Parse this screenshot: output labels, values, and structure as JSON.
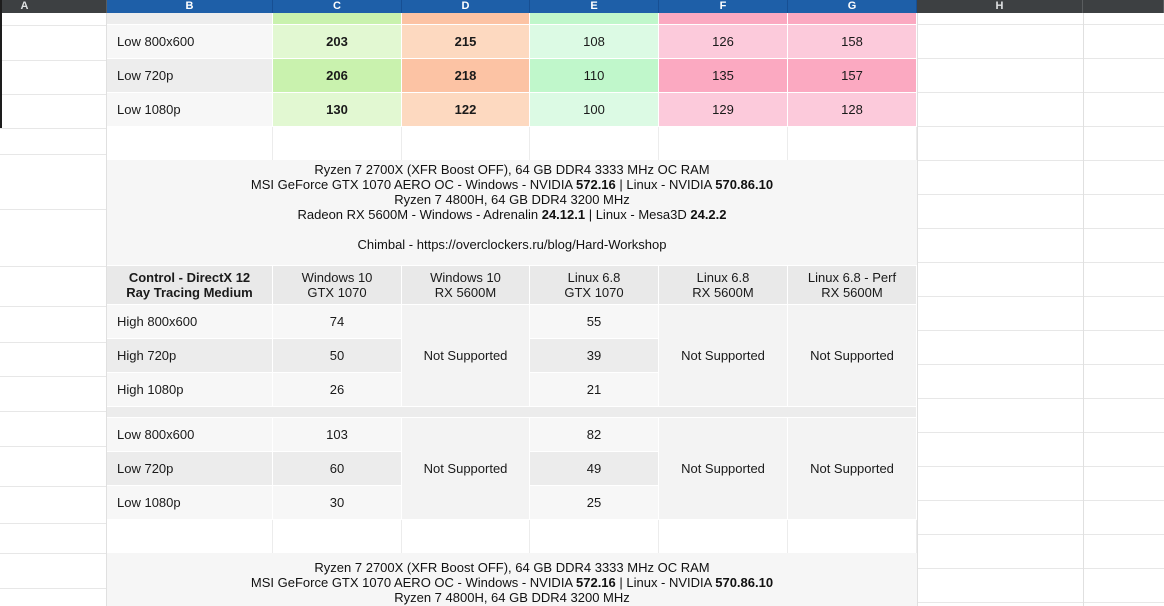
{
  "column_headers": {
    "labels": [
      "A",
      "B",
      "C",
      "D",
      "E",
      "F",
      "G",
      "H"
    ],
    "selected_columns": "B-G"
  },
  "colors": {
    "header_selected_bg": "#1e5fa8",
    "header_bg": "#3d4042",
    "header_text": "#ffffff",
    "green_light": "#e2f8d2",
    "green_dark": "#c9f2ae",
    "orange_light": "#fdd9c0",
    "orange_dark": "#fcc3a4",
    "mint_light": "#dcfae4",
    "mint_dark": "#c0f7cb",
    "pink_light": "#fccadb",
    "pink_dark": "#fba9c1",
    "row_light": "#f7f7f7",
    "row_dark": "#ededed",
    "spec_block_bg": "#f6f6f6",
    "table_header_bg": "#e9e9e9",
    "merged_cell_bg": "#f3f3f3"
  },
  "top_table": {
    "rows": [
      {
        "label": "Low 800x600",
        "values": [
          "203",
          "215",
          "108",
          "126",
          "158"
        ]
      },
      {
        "label": "Low 720p",
        "values": [
          "206",
          "218",
          "110",
          "135",
          "157"
        ]
      },
      {
        "label": "Low 1080p",
        "values": [
          "130",
          "122",
          "100",
          "129",
          "128"
        ]
      }
    ]
  },
  "spec_block": {
    "line1": "Ryzen 7 2700X (XFR Boost OFF), 64 GB DDR4 3333 MHz OC RAM",
    "line2a": "MSI GeForce GTX 1070 AERO OC - Windows - NVIDIA ",
    "line2b": "572.16",
    "line2c": " | Linux - NVIDIA ",
    "line2d": "570.86.10",
    "line3": "Ryzen 7 4800H, 64 GB DDR4 3200 MHz",
    "line4a": "Radeon RX 5600M - Windows - Adrenalin ",
    "line4b": "24.12.1",
    "line4c": " | Linux - Mesa3D ",
    "line4d": "24.2.2",
    "credit": "Chimbal - https://overclockers.ru/blog/Hard-Workshop"
  },
  "benchmark_table": {
    "title_line1": "Control - DirectX 12",
    "title_line2": "Ray Tracing Medium",
    "columns": [
      {
        "l1": "Windows 10",
        "l2": "GTX 1070"
      },
      {
        "l1": "Windows 10",
        "l2": "RX 5600M"
      },
      {
        "l1": "Linux 6.8",
        "l2": "GTX 1070"
      },
      {
        "l1": "Linux 6.8",
        "l2": "RX 5600M"
      },
      {
        "l1": "Linux 6.8 - Perf",
        "l2": "RX 5600M"
      }
    ],
    "not_supported": "Not Supported",
    "high_rows": [
      {
        "label": "High 800x600",
        "win_gtx1070": "74",
        "linux_gtx1070": "55"
      },
      {
        "label": "High 720p",
        "win_gtx1070": "50",
        "linux_gtx1070": "39"
      },
      {
        "label": "High 1080p",
        "win_gtx1070": "26",
        "linux_gtx1070": "21"
      }
    ],
    "low_rows": [
      {
        "label": "Low 800x600",
        "win_gtx1070": "103",
        "linux_gtx1070": "82"
      },
      {
        "label": "Low 720p",
        "win_gtx1070": "60",
        "linux_gtx1070": "49"
      },
      {
        "label": "Low 1080p",
        "win_gtx1070": "30",
        "linux_gtx1070": "25"
      }
    ]
  }
}
